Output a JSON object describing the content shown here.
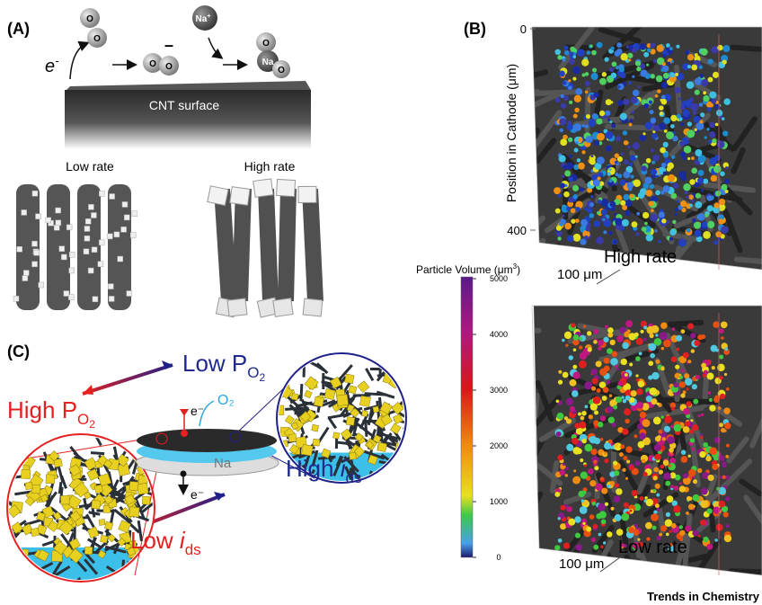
{
  "panel_a": {
    "label": "(A)",
    "electron": "e",
    "electron_sup": "-",
    "oxygen_atoms": [
      "O",
      "O",
      "O",
      "O",
      "O",
      "O"
    ],
    "superoxide_charge": "–",
    "sodium_ion": "Na",
    "sodium_ion_sup": "+",
    "sodium": "Na",
    "surface": "CNT surface",
    "low_rate": "Low rate",
    "high_rate": "High rate"
  },
  "panel_b": {
    "label": "(B)",
    "axis_title": "Position in Cathode (μm)",
    "axis_ticks": [
      0,
      400
    ],
    "axis_lim": [
      0,
      400
    ],
    "top_cube_label": "High rate",
    "bottom_cube_label": "Low rate",
    "scale_bars": [
      "100 μm",
      "100 μm"
    ],
    "colorbar": {
      "title": "Particle Volume (μm",
      "title_sup": "3",
      "title_end": ")",
      "ticks": [
        0,
        1000,
        2000,
        3000,
        4000,
        5000
      ],
      "lim": [
        0,
        5000
      ]
    }
  },
  "panel_c": {
    "label": "(C)",
    "low_p": {
      "text": "Low P",
      "sub": "O",
      "subsub": "2"
    },
    "high_p": {
      "text": "High P",
      "sub": "O",
      "subsub": "2"
    },
    "electron_in": "e⁻",
    "oxygen": "O₂",
    "sodium": "Na",
    "electron_out": "e⁻",
    "high_i": {
      "text": "High ",
      "italic": "i",
      "sub": "ds"
    },
    "low_i": {
      "text": "Low ",
      "italic": "i",
      "sub": "ds"
    }
  },
  "footer": "Trends in Chemistry"
}
